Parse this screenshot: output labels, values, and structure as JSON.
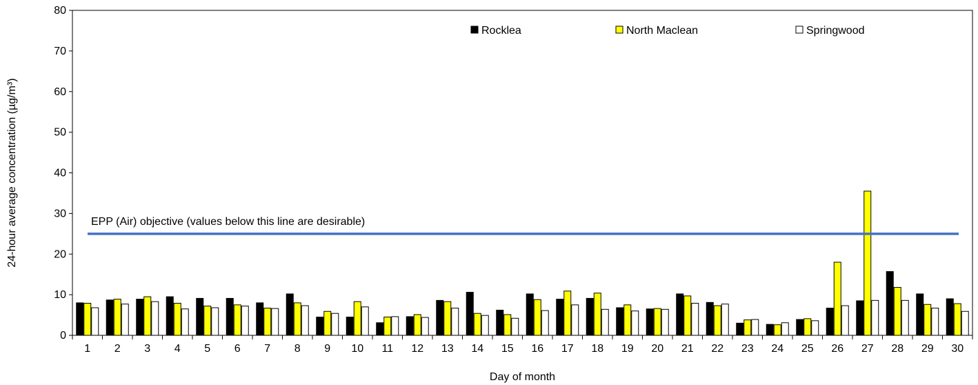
{
  "chart_data": {
    "type": "bar",
    "title": "",
    "xlabel": "Day of month",
    "ylabel": "24-hour average concentration (µg/m³)",
    "ylim": [
      0,
      80
    ],
    "yticks": [
      0,
      10,
      20,
      30,
      40,
      50,
      60,
      70,
      80
    ],
    "grid": false,
    "legend_position": "top-right",
    "categories": [
      "1",
      "2",
      "3",
      "4",
      "5",
      "6",
      "7",
      "8",
      "9",
      "10",
      "11",
      "12",
      "13",
      "14",
      "15",
      "16",
      "17",
      "18",
      "19",
      "20",
      "21",
      "22",
      "23",
      "24",
      "25",
      "26",
      "27",
      "28",
      "29",
      "30"
    ],
    "series": [
      {
        "name": "Rocklea",
        "color": "#000000",
        "values": [
          8.0,
          8.7,
          8.9,
          9.5,
          9.1,
          9.1,
          8.0,
          10.2,
          4.5,
          4.5,
          3.1,
          4.6,
          8.6,
          10.6,
          6.2,
          10.2,
          8.9,
          9.1,
          6.8,
          6.5,
          10.2,
          8.1,
          3.0,
          2.7,
          3.9,
          6.7,
          8.5,
          15.7,
          10.2,
          9.0
        ]
      },
      {
        "name": "North Maclean",
        "color": "#FFFF00",
        "values": [
          7.9,
          8.9,
          9.5,
          7.9,
          7.2,
          7.5,
          6.7,
          8.0,
          5.9,
          8.3,
          4.5,
          5.1,
          8.3,
          5.4,
          5.1,
          8.8,
          10.9,
          10.4,
          7.5,
          6.6,
          9.7,
          7.3,
          3.8,
          2.6,
          4.1,
          18.0,
          35.5,
          11.8,
          7.6,
          7.8
        ]
      },
      {
        "name": "Springwood",
        "color": "#FFFFFF",
        "values": [
          6.8,
          7.7,
          8.3,
          6.5,
          6.8,
          7.2,
          6.6,
          7.3,
          5.4,
          7.0,
          4.6,
          4.4,
          6.7,
          4.9,
          4.2,
          6.1,
          7.5,
          6.4,
          6.0,
          6.4,
          7.9,
          7.7,
          3.9,
          3.1,
          3.6,
          7.3,
          8.6,
          8.6,
          6.7,
          5.9
        ]
      }
    ],
    "reference_line": {
      "value": 25,
      "label": "EPP (Air) objective (values below this line are desirable)",
      "color": "#4472C4"
    }
  }
}
